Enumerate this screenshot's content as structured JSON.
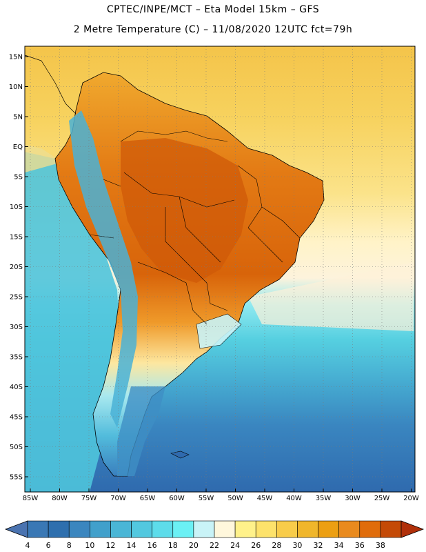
{
  "header": {
    "line1": "CPTEC/INPE/MCT –  Eta Model 15km – GFS",
    "line2": "2 Metre Temperature (C) – 11/08/2020 12UTC fct=79h"
  },
  "axes": {
    "lat_labels": [
      "15N",
      "10N",
      "5N",
      "EQ",
      "5S",
      "10S",
      "15S",
      "20S",
      "25S",
      "30S",
      "35S",
      "40S",
      "45S",
      "50S",
      "55S"
    ],
    "lon_labels": [
      "85W",
      "80W",
      "75W",
      "70W",
      "65W",
      "60W",
      "55W",
      "50W",
      "45W",
      "40W",
      "35W",
      "30W",
      "25W",
      "20W"
    ]
  },
  "colorbar": {
    "labels": [
      "4",
      "6",
      "8",
      "10",
      "12",
      "14",
      "16",
      "18",
      "20",
      "22",
      "24",
      "26",
      "28",
      "30",
      "32",
      "34",
      "36",
      "38"
    ],
    "colors": [
      "#3a78b5",
      "#2e6fae",
      "#3b86bf",
      "#41a0cb",
      "#4ab6d6",
      "#52c8df",
      "#5ddcea",
      "#6bf0f4",
      "#c9f3f7",
      "#fff7dc",
      "#fff18a",
      "#fde26b",
      "#f8cc4a",
      "#f0b62b",
      "#ec9f12",
      "#e98a1e",
      "#e06c0b",
      "#c44a07"
    ],
    "under_color": "#4a73b0",
    "over_color": "#b0300a"
  }
}
